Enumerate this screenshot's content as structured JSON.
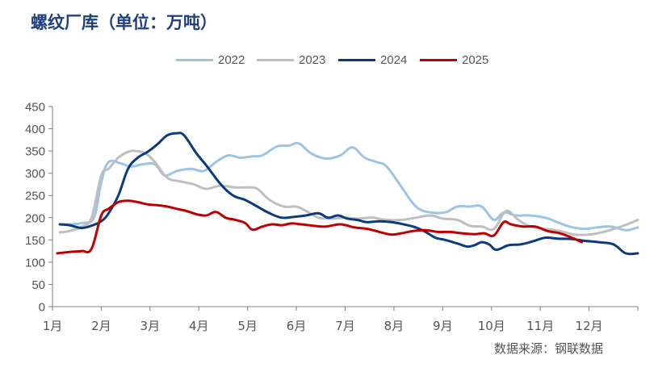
{
  "header": {
    "title": "螺纹厂库（单位：万吨）"
  },
  "source": "数据来源：钢联数据",
  "chart_data": {
    "type": "line",
    "title": "螺纹厂库（单位：万吨）",
    "xlabel": "",
    "ylabel": "",
    "ylim": [
      0,
      450
    ],
    "yticks": [
      0,
      50,
      100,
      150,
      200,
      250,
      300,
      350,
      400,
      450
    ],
    "ytick_labels": [
      "0",
      "50",
      "100",
      "150",
      "200",
      "250",
      "300",
      "350",
      "400",
      "450"
    ],
    "xlim": [
      1,
      13
    ],
    "categories": [
      "1月",
      "2月",
      "3月",
      "4月",
      "5月",
      "6月",
      "7月",
      "8月",
      "9月",
      "10月",
      "11月",
      "12月"
    ],
    "legend_position": "top",
    "series": [
      {
        "name": "2022",
        "color": "#9dc3e6",
        "x": [
          1.15,
          1.35,
          1.6,
          1.85,
          2.0,
          2.15,
          2.4,
          2.6,
          2.85,
          3.1,
          3.3,
          3.55,
          3.85,
          4.1,
          4.35,
          4.6,
          4.85,
          5.1,
          5.3,
          5.6,
          5.85,
          6.05,
          6.3,
          6.6,
          6.9,
          7.15,
          7.4,
          7.65,
          7.85,
          8.15,
          8.45,
          8.75,
          9.05,
          9.3,
          9.55,
          9.8,
          10.05,
          10.25,
          10.5,
          10.8,
          11.1,
          11.35,
          11.6,
          11.9,
          12.15,
          12.45,
          12.75,
          13.0
        ],
        "values": [
          185,
          185,
          188,
          200,
          280,
          325,
          322,
          315,
          320,
          320,
          295,
          305,
          310,
          305,
          325,
          340,
          335,
          338,
          340,
          360,
          362,
          367,
          345,
          333,
          340,
          358,
          335,
          325,
          315,
          270,
          225,
          212,
          212,
          225,
          225,
          225,
          195,
          212,
          205,
          205,
          200,
          190,
          180,
          175,
          178,
          180,
          172,
          178
        ]
      },
      {
        "name": "2023",
        "color": "#bfbfbf",
        "x": [
          1.15,
          1.35,
          1.6,
          1.8,
          2.0,
          2.15,
          2.35,
          2.55,
          2.7,
          2.9,
          3.1,
          3.35,
          3.6,
          3.9,
          4.15,
          4.45,
          4.75,
          5.0,
          5.2,
          5.45,
          5.75,
          6.0,
          6.2,
          6.45,
          6.75,
          7.0,
          7.25,
          7.55,
          7.85,
          8.15,
          8.45,
          8.75,
          9.0,
          9.3,
          9.55,
          9.8,
          10.05,
          10.3,
          10.55,
          10.8,
          11.1,
          11.4,
          11.7,
          12.0,
          12.3,
          12.6,
          12.85,
          13.0
        ],
        "values": [
          167,
          170,
          180,
          200,
          295,
          310,
          335,
          348,
          350,
          345,
          325,
          290,
          282,
          275,
          265,
          272,
          268,
          268,
          265,
          240,
          225,
          225,
          215,
          200,
          198,
          200,
          198,
          200,
          195,
          195,
          200,
          205,
          198,
          195,
          182,
          180,
          175,
          215,
          195,
          180,
          175,
          170,
          162,
          162,
          168,
          178,
          188,
          195
        ]
      },
      {
        "name": "2024",
        "color": "#0b3a7e",
        "x": [
          1.15,
          1.35,
          1.6,
          1.8,
          2.0,
          2.15,
          2.35,
          2.55,
          2.75,
          2.95,
          3.15,
          3.35,
          3.55,
          3.7,
          3.95,
          4.15,
          4.45,
          4.7,
          4.95,
          5.2,
          5.45,
          5.7,
          5.95,
          6.2,
          6.45,
          6.65,
          6.85,
          7.05,
          7.25,
          7.45,
          7.7,
          7.95,
          8.2,
          8.45,
          8.65,
          8.85,
          9.05,
          9.3,
          9.5,
          9.65,
          9.8,
          9.95,
          10.1,
          10.35,
          10.6,
          10.85,
          11.1,
          11.35,
          11.65,
          11.9,
          12.2,
          12.5,
          12.75,
          13.0
        ],
        "values": [
          185,
          183,
          177,
          182,
          192,
          210,
          250,
          310,
          335,
          348,
          365,
          385,
          390,
          385,
          345,
          318,
          275,
          250,
          240,
          225,
          210,
          200,
          202,
          205,
          210,
          200,
          205,
          198,
          195,
          190,
          192,
          190,
          185,
          178,
          168,
          155,
          150,
          142,
          135,
          138,
          145,
          140,
          128,
          138,
          140,
          147,
          155,
          153,
          152,
          148,
          145,
          140,
          120,
          120
        ]
      },
      {
        "name": "2025",
        "color": "#c00000",
        "x": [
          1.1,
          1.35,
          1.6,
          1.8,
          2.0,
          2.15,
          2.35,
          2.55,
          2.75,
          2.95,
          3.15,
          3.35,
          3.55,
          3.75,
          3.95,
          4.15,
          4.35,
          4.55,
          4.75,
          4.95,
          5.1,
          5.3,
          5.5,
          5.7,
          5.9,
          6.1,
          6.35,
          6.6,
          6.9,
          7.2,
          7.45,
          7.7,
          7.95,
          8.15,
          8.4,
          8.65,
          8.9,
          9.15,
          9.4,
          9.65,
          9.85,
          10.05,
          10.25,
          10.4,
          10.65,
          10.9,
          11.15,
          11.4,
          11.65,
          11.85
        ],
        "values": [
          120,
          123,
          125,
          130,
          205,
          220,
          235,
          238,
          235,
          230,
          228,
          225,
          220,
          215,
          208,
          205,
          213,
          200,
          195,
          188,
          173,
          180,
          185,
          183,
          187,
          185,
          182,
          180,
          185,
          178,
          175,
          168,
          162,
          165,
          170,
          172,
          168,
          168,
          165,
          163,
          165,
          160,
          190,
          185,
          180,
          180,
          170,
          165,
          155,
          145
        ]
      }
    ]
  }
}
